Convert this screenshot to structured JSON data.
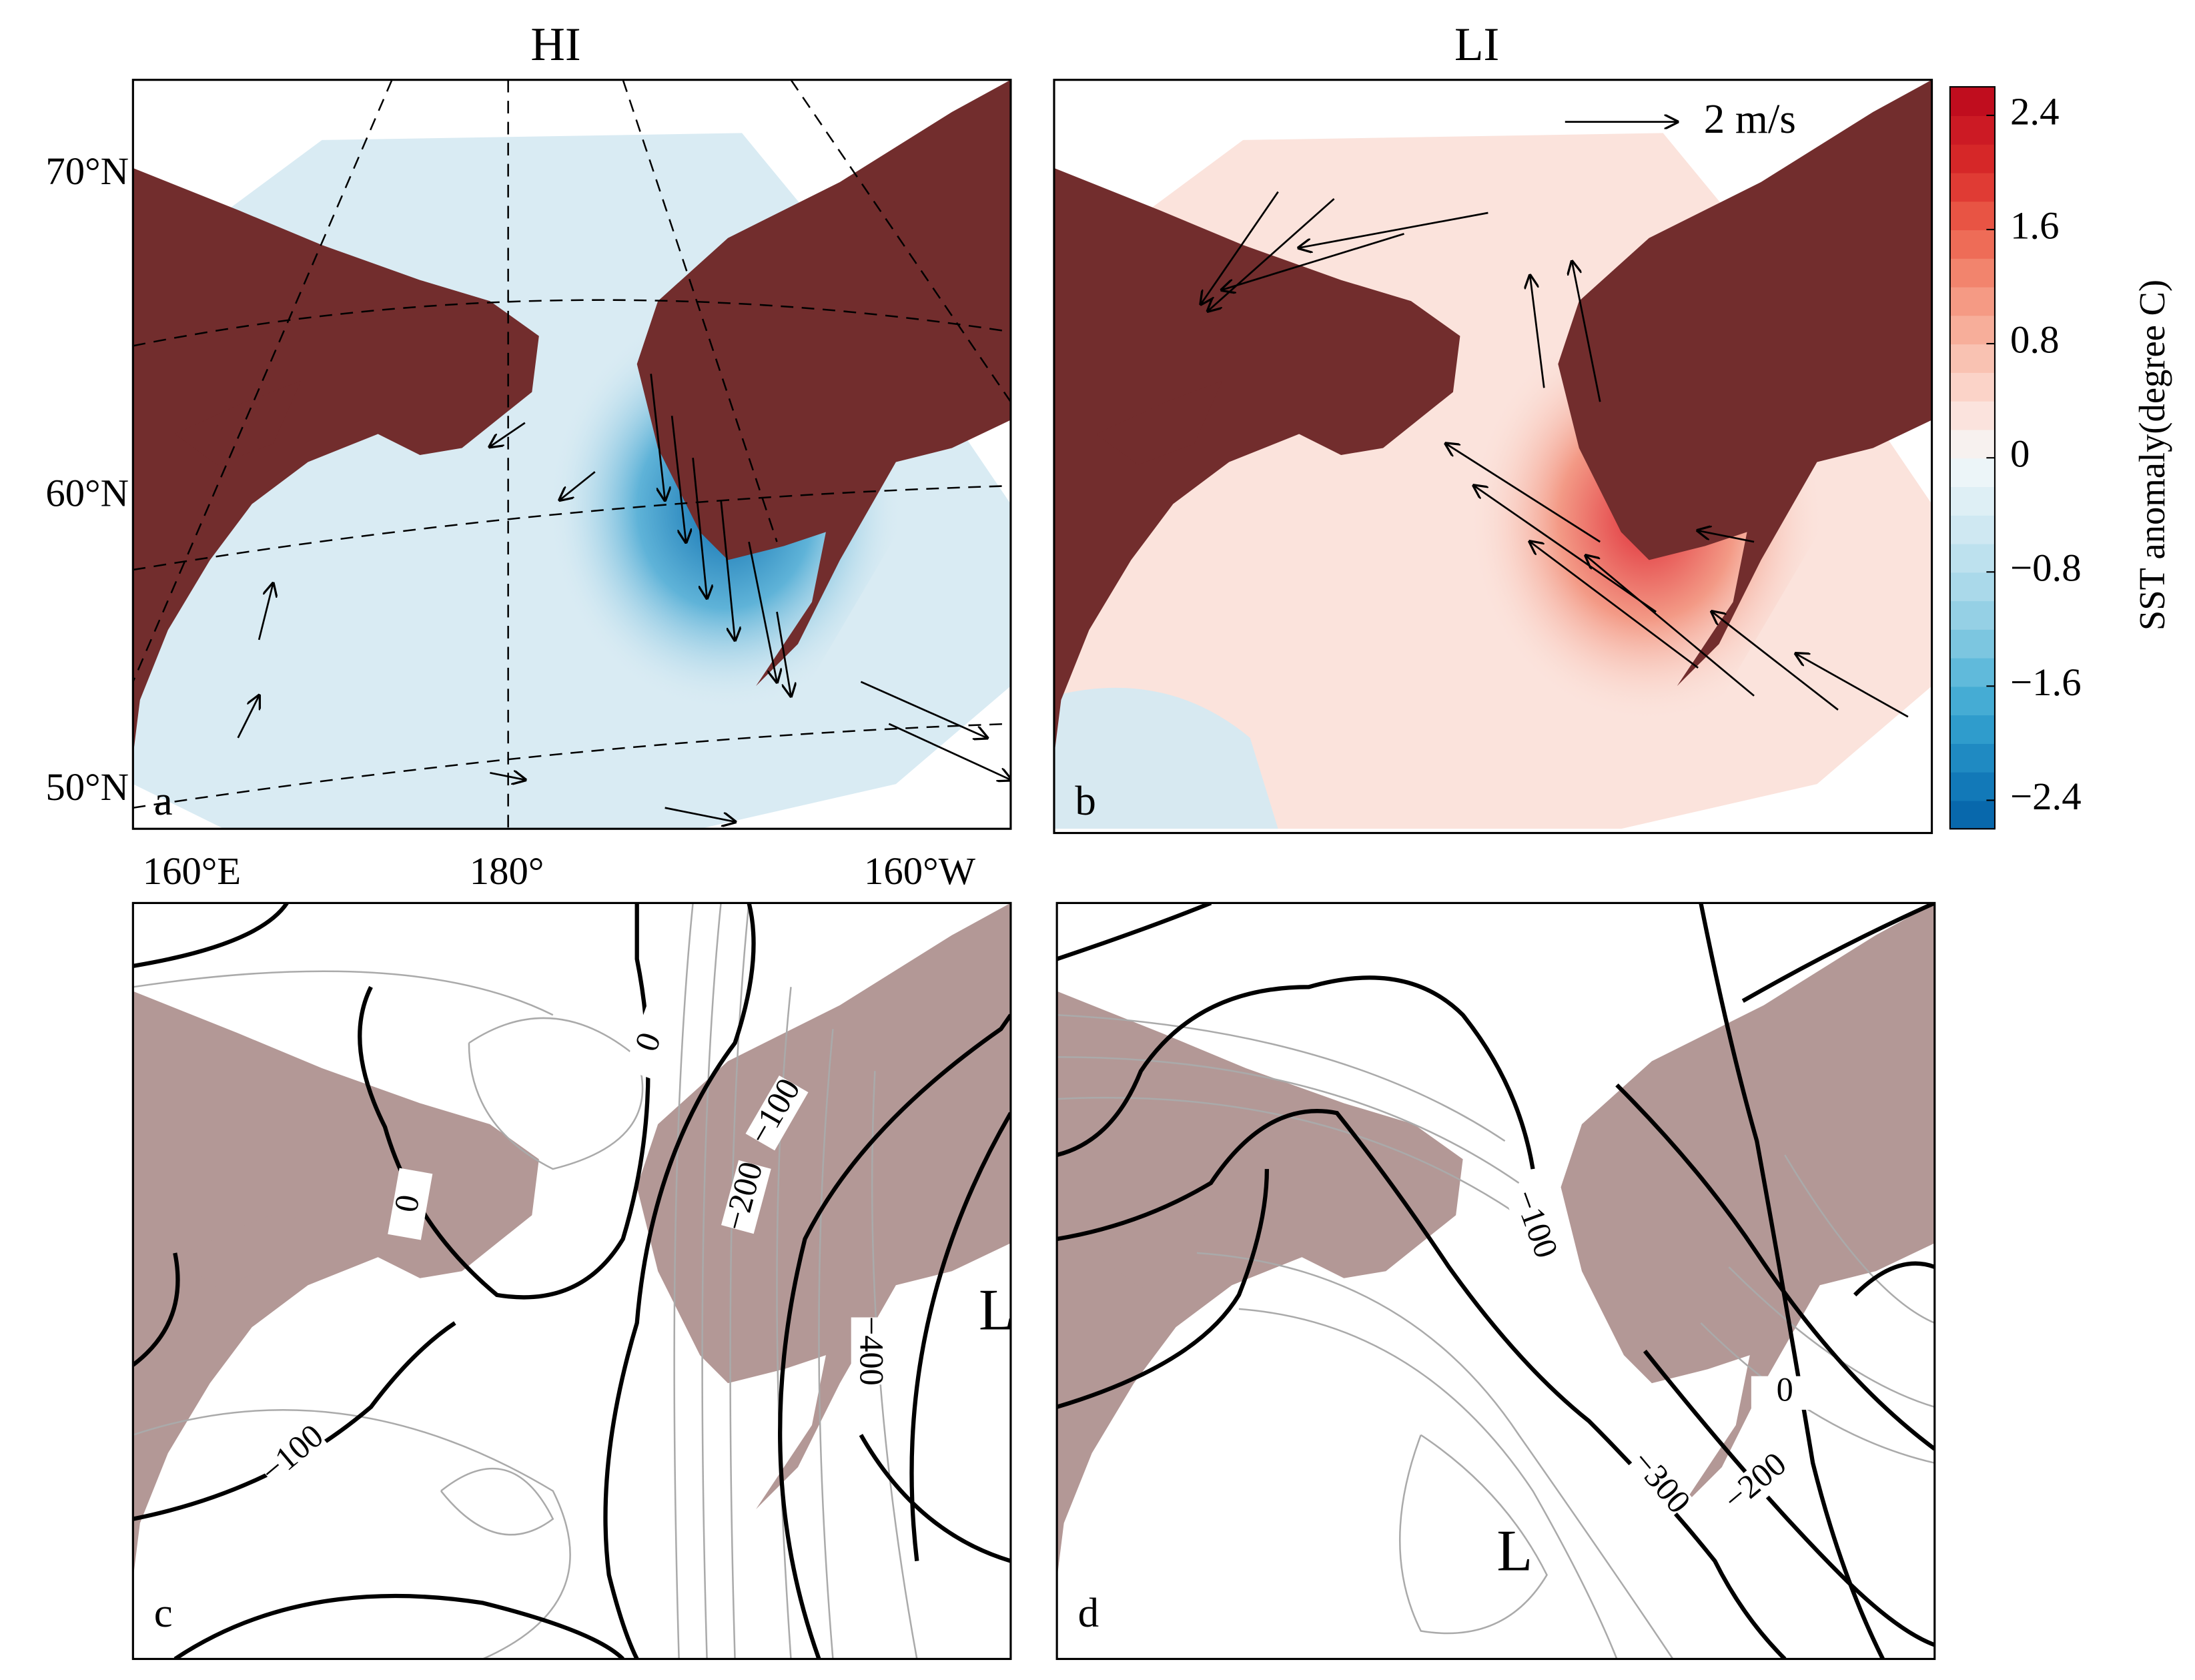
{
  "panels": [
    {
      "title": "HI",
      "letter": "a"
    },
    {
      "title": "LI",
      "letter": "b",
      "vector_scale": "2 m/s"
    },
    {
      "letter": "c",
      "contour_labels": [
        "0",
        "−100",
        "−200",
        "0",
        "−400",
        "−100"
      ],
      "low_label": "L"
    },
    {
      "letter": "d",
      "contour_labels": [
        "−100",
        "0",
        "−200",
        "−300"
      ],
      "low_label": "L"
    }
  ],
  "lat_labels": [
    "70°N",
    "60°N",
    "50°N"
  ],
  "lon_labels": [
    "160°E",
    "180°",
    "160°W"
  ],
  "colorbar": {
    "label": "SST anomaly(degree C)",
    "lim": [
      -2.6,
      2.6
    ],
    "ticks": [
      2.4,
      1.6,
      0.8,
      0,
      {
        "value": -0.8,
        "label": "−0.8"
      },
      {
        "value": -1.6,
        "label": "−1.6"
      },
      {
        "value": -2.4,
        "label": "−2.4"
      }
    ],
    "colors": [
      "#0868ac",
      "#1279b8",
      "#1f8ac2",
      "#2f9ccc",
      "#45acd4",
      "#60badb",
      "#7cc6e0",
      "#95d0e5",
      "#aad9ea",
      "#bde1ee",
      "#cfe8f2",
      "#deeff5",
      "#ecf5f8",
      "#f7f1ef",
      "#fbe3dd",
      "#fbd3c8",
      "#f9c2b2",
      "#f7ae9a",
      "#f59a84",
      "#f2846d",
      "#ee6c57",
      "#e85444",
      "#e03b34",
      "#d62728",
      "#cc1a24",
      "#c00d1e"
    ]
  }
}
